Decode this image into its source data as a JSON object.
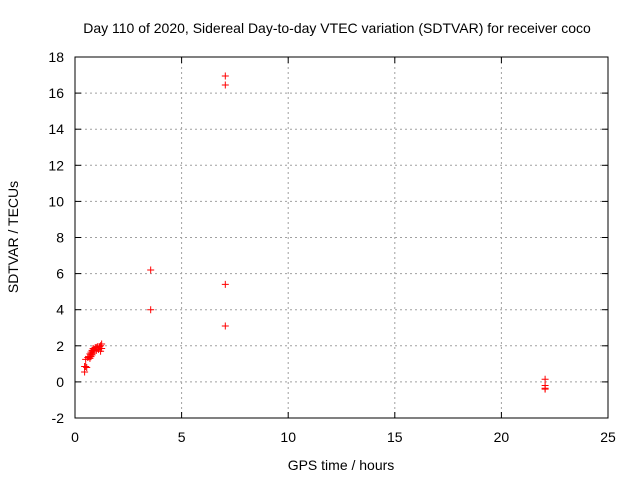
{
  "chart_data": {
    "type": "scatter",
    "title": "Day 110 of 2020, Sidereal Day-to-day VTEC variation (SDTVAR) for receiver coco",
    "xlabel": "GPS time / hours",
    "ylabel": "SDTVAR / TECUs",
    "xlim": [
      0,
      25
    ],
    "ylim": [
      -2,
      18
    ],
    "xticks": [
      0,
      5,
      10,
      15,
      20,
      25
    ],
    "yticks": [
      -2,
      0,
      2,
      4,
      6,
      8,
      10,
      12,
      14,
      16,
      18
    ],
    "grid": true,
    "marker": "+",
    "color": "#ff0000",
    "series": [
      {
        "name": "SDTVAR",
        "x": [
          0.45,
          0.45,
          0.5,
          0.5,
          0.55,
          0.6,
          0.65,
          0.7,
          0.7,
          0.75,
          0.75,
          0.8,
          0.8,
          0.85,
          0.85,
          0.9,
          0.9,
          0.95,
          1.0,
          1.0,
          1.05,
          1.1,
          1.15,
          1.2,
          1.2,
          1.25,
          1.25,
          3.55,
          3.55,
          7.05,
          7.05,
          7.05,
          7.05,
          22.05,
          22.05,
          22.05,
          22.05
        ],
        "y": [
          0.55,
          0.85,
          0.85,
          1.25,
          0.8,
          1.35,
          1.4,
          1.3,
          1.55,
          1.4,
          1.65,
          1.5,
          1.75,
          1.6,
          1.85,
          1.7,
          1.8,
          1.9,
          1.75,
          1.9,
          1.95,
          1.8,
          1.95,
          1.7,
          2.0,
          1.85,
          2.1,
          6.2,
          4.0,
          16.95,
          16.45,
          5.4,
          3.1,
          0.15,
          -0.2,
          -0.35,
          -0.4
        ]
      }
    ]
  }
}
